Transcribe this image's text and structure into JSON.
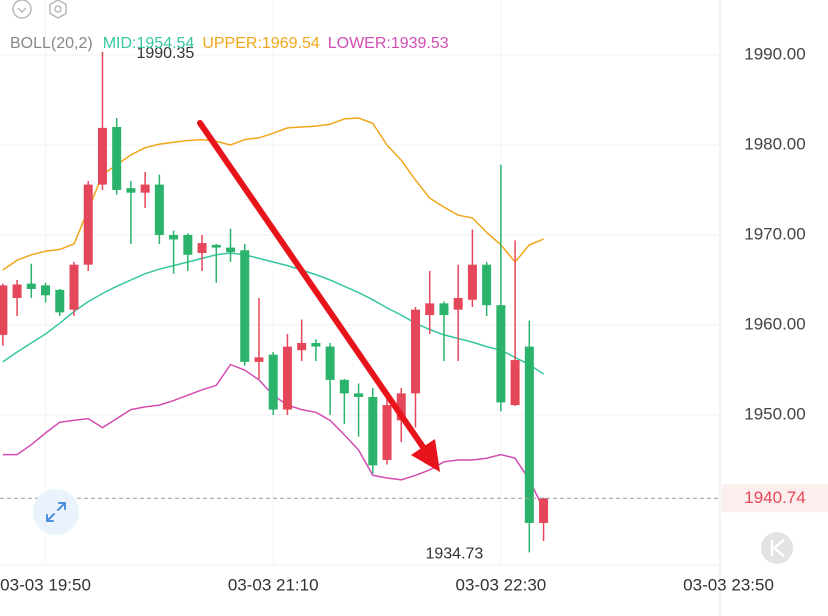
{
  "chart_data": {
    "type": "candlestick",
    "indicator": "BOLL(20,2)",
    "x": [
      "03-03 19:35",
      "03-03 19:40",
      "03-03 19:45",
      "03-03 19:50",
      "03-03 19:55",
      "03-03 20:00",
      "03-03 20:05",
      "03-03 20:10",
      "03-03 20:15",
      "03-03 20:20",
      "03-03 20:25",
      "03-03 20:30",
      "03-03 20:35",
      "03-03 20:40",
      "03-03 20:45",
      "03-03 20:50",
      "03-03 20:55",
      "03-03 21:00",
      "03-03 21:05",
      "03-03 21:10",
      "03-03 21:15",
      "03-03 21:20",
      "03-03 21:25",
      "03-03 21:30",
      "03-03 21:35",
      "03-03 21:40",
      "03-03 21:45",
      "03-03 21:50",
      "03-03 21:55",
      "03-03 22:00",
      "03-03 22:05",
      "03-03 22:10",
      "03-03 22:15",
      "03-03 22:20",
      "03-03 22:25",
      "03-03 22:30",
      "03-03 22:35",
      "03-03 22:40",
      "03-03 22:45"
    ],
    "open": [
      1958.9,
      1963.0,
      1964.6,
      1964.4,
      1963.9,
      1961.7,
      1966.7,
      1975.6,
      1982.0,
      1975.2,
      1974.7,
      1975.6,
      1970.0,
      1970.0,
      1968.0,
      1968.9,
      1968.6,
      1968.3,
      1955.9,
      1956.7,
      1950.6,
      1957.2,
      1958.0,
      1957.6,
      1953.9,
      1952.4,
      1952.0,
      1945.0,
      1949.4,
      1952.4,
      1961.1,
      1962.4,
      1961.7,
      1962.8,
      1966.7,
      1962.2,
      1951.1,
      1957.6,
      1938.0
    ],
    "high": [
      1964.6,
      1965.0,
      1966.8,
      1964.7,
      1964.0,
      1967.0,
      1976.0,
      1990.35,
      1983.0,
      1976.0,
      1977.0,
      1976.7,
      1970.5,
      1970.2,
      1970.0,
      1969.0,
      1970.7,
      1969.0,
      1963.0,
      1957.0,
      1959.0,
      1960.6,
      1958.4,
      1958.0,
      1954.0,
      1953.5,
      1953.0,
      1952.0,
      1953.0,
      1962.0,
      1966.0,
      1962.6,
      1966.7,
      1970.6,
      1967.0,
      1977.8,
      1969.4,
      1960.5,
      1940.8
    ],
    "low": [
      1957.7,
      1961.0,
      1963.0,
      1962.5,
      1961.0,
      1961.0,
      1966.0,
      1975.0,
      1974.5,
      1969.0,
      1973.0,
      1969.0,
      1965.7,
      1966.0,
      1966.0,
      1964.7,
      1967.0,
      1955.5,
      1954.0,
      1950.0,
      1950.0,
      1956.0,
      1956.0,
      1950.0,
      1949.0,
      1947.6,
      1943.5,
      1944.5,
      1947.0,
      1948.6,
      1959.0,
      1956.0,
      1956.0,
      1962.0,
      1961.0,
      1950.4,
      1951.0,
      1934.73,
      1936.0
    ],
    "close": [
      1964.4,
      1964.5,
      1964.0,
      1963.3,
      1961.4,
      1966.7,
      1975.6,
      1981.9,
      1975.0,
      1974.7,
      1975.6,
      1970.0,
      1969.5,
      1967.8,
      1969.1,
      1968.6,
      1968.1,
      1955.9,
      1956.4,
      1950.6,
      1957.6,
      1958.0,
      1957.6,
      1953.9,
      1952.4,
      1952.0,
      1944.4,
      1951.1,
      1952.4,
      1961.7,
      1962.4,
      1961.1,
      1963.0,
      1966.7,
      1962.2,
      1951.4,
      1956.1,
      1938.0,
      1940.74
    ],
    "up_color": "#e5475a",
    "down_color": "#2bb36b",
    "series": [
      {
        "name": "MID:1954.54",
        "color": "#36c7a2",
        "values": [
          1955.9,
          1957.0,
          1958.0,
          1959.0,
          1960.2,
          1961.5,
          1962.6,
          1963.5,
          1964.3,
          1965.0,
          1965.7,
          1966.2,
          1966.6,
          1967.0,
          1967.4,
          1967.8,
          1968.0,
          1967.8,
          1967.4,
          1967.0,
          1966.6,
          1966.1,
          1965.6,
          1965.0,
          1964.3,
          1963.6,
          1962.8,
          1961.9,
          1961.1,
          1960.2,
          1959.5,
          1958.9,
          1958.5,
          1958.1,
          1957.6,
          1957.2,
          1956.4,
          1955.6,
          1954.54
        ]
      },
      {
        "name": "UPPER:1969.54",
        "color": "#f0a61a",
        "values": [
          1966.1,
          1967.2,
          1967.8,
          1968.2,
          1968.4,
          1969.0,
          1972.8,
          1976.7,
          1977.8,
          1978.9,
          1979.7,
          1980.1,
          1980.3,
          1980.5,
          1980.6,
          1980.4,
          1980.0,
          1980.6,
          1980.8,
          1981.3,
          1981.9,
          1982.0,
          1982.1,
          1982.3,
          1982.9,
          1983.0,
          1982.4,
          1980.0,
          1978.3,
          1976.1,
          1974.1,
          1973.1,
          1972.2,
          1971.9,
          1970.3,
          1968.9,
          1967.0,
          1968.9,
          1969.54
        ]
      },
      {
        "name": "LOWER:1939.53",
        "color": "#d24db2",
        "values": [
          1945.6,
          1945.6,
          1946.7,
          1948.0,
          1949.2,
          1949.4,
          1949.6,
          1948.6,
          1949.6,
          1950.6,
          1950.9,
          1951.1,
          1951.6,
          1952.2,
          1952.8,
          1953.3,
          1955.6,
          1955.0,
          1953.9,
          1952.2,
          1951.1,
          1950.6,
          1950.3,
          1949.4,
          1947.8,
          1946.1,
          1943.3,
          1943.0,
          1942.8,
          1943.3,
          1943.9,
          1944.8,
          1945.0,
          1945.0,
          1945.2,
          1945.6,
          1945.2,
          1942.8,
          1939.53
        ]
      }
    ],
    "ylim": [
      1933.33,
      1996.11
    ],
    "yticks": [
      {
        "value": 1950,
        "label": "1950.00"
      },
      {
        "value": 1960,
        "label": "1960.00"
      },
      {
        "value": 1970,
        "label": "1970.00"
      },
      {
        "value": 1980,
        "label": "1980.00"
      },
      {
        "value": 1990,
        "label": "1990.00"
      }
    ],
    "xlim": [
      "03-03 19:34",
      "03-03 23:47"
    ],
    "xticks": [
      "03-03 19:50",
      "03-03 21:10",
      "03-03 22:30",
      "03-03 23:50"
    ],
    "grid": true,
    "last_price": 1940.74,
    "high_label": 1990.35,
    "low_label": 1934.73
  }
}
